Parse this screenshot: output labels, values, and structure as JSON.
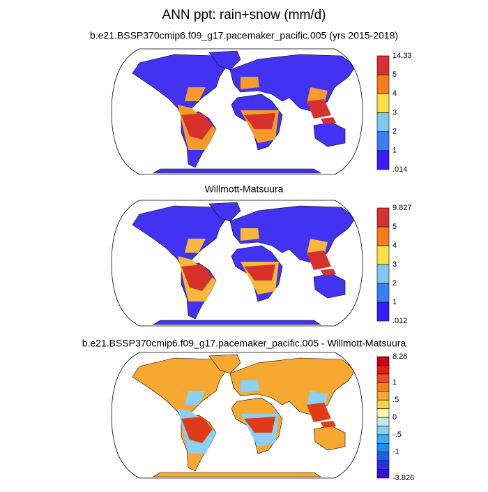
{
  "title": "ANN ppt: rain+snow (mm/d)",
  "panels": [
    {
      "title": "b.e21.BSSP370cmip6.f09_g17.pacemaker_pacific.005 (yrs 2015-2018)",
      "colorbar": {
        "colors": [
          "#3a1cff",
          "#3a7ff0",
          "#80c8ef",
          "#fde13f",
          "#f47e1c",
          "#d73232"
        ],
        "labels": [
          ".014",
          "1",
          "2",
          "3",
          "4",
          "5",
          "14.33"
        ]
      }
    },
    {
      "title": "Willmott-Matsuura",
      "colorbar": {
        "colors": [
          "#3a1cff",
          "#3a7ff0",
          "#80c8ef",
          "#fde13f",
          "#f47e1c",
          "#d73232"
        ],
        "labels": [
          ".012",
          "1",
          "2",
          "3",
          "4",
          "5",
          "9.827"
        ]
      }
    },
    {
      "title": "b.e21.BSSP370cmip6.f09_g17.pacemaker_pacific.005 - Willmott-Matsuura",
      "colorbar": {
        "colors": [
          "#3a10d8",
          "#2830e0",
          "#1e60e8",
          "#1e90f0",
          "#3caff0",
          "#8bd0f0",
          "#c6e8f5",
          "#fffaa8",
          "#fcd040",
          "#f7a830",
          "#f58020",
          "#f05020",
          "#e62010",
          "#c8001a"
        ],
        "labels": [
          "-3.826",
          "-1",
          "-.5",
          "0",
          ".5",
          "1",
          "8.28"
        ]
      }
    }
  ]
}
